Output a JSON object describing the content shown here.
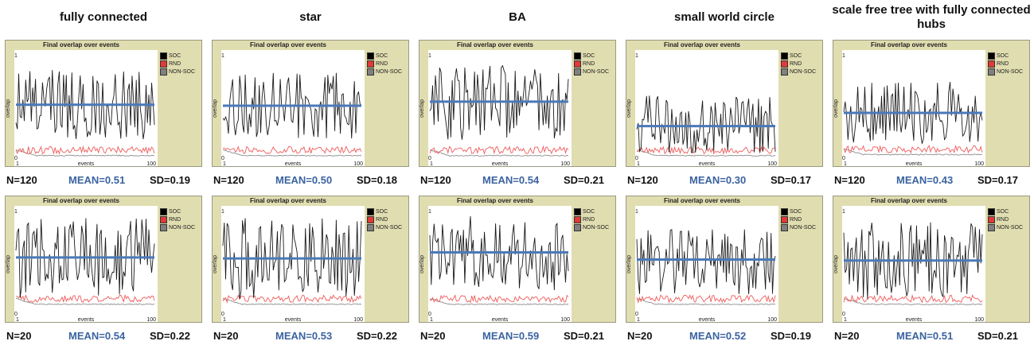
{
  "columns": [
    "fully connected",
    "star",
    "BA",
    "small world circle",
    "scale free tree with fully connected hubs"
  ],
  "panel_title": "Final overlap over events",
  "legend": [
    {
      "label": "SOC",
      "color": "#000000"
    },
    {
      "label": "RND",
      "color": "#e03a3a"
    },
    {
      "label": "NON-SOC",
      "color": "#808080"
    }
  ],
  "axis": {
    "ylabel": "overlap",
    "xlabel": "events",
    "y_top": "1",
    "y_bottom": "0",
    "x_left": "1",
    "x_right": "100"
  },
  "colors": {
    "soc": "#1a1a1a",
    "rnd": "#ef5b5b",
    "nonsoc": "#8c8c8c",
    "mean": "#4a79b8"
  },
  "rows": [
    {
      "n_label": "N=120",
      "panels": [
        {
          "mean_label": "MEAN=0.51",
          "sd_label": "SD=0.19"
        },
        {
          "mean_label": "MEAN=0.50",
          "sd_label": "SD=0.18"
        },
        {
          "mean_label": "MEAN=0.54",
          "sd_label": "SD=0.21"
        },
        {
          "mean_label": "MEAN=0.30",
          "sd_label": "SD=0.17"
        },
        {
          "mean_label": "MEAN=0.43",
          "sd_label": "SD=0.17"
        }
      ]
    },
    {
      "n_label": "N=20",
      "panels": [
        {
          "mean_label": "MEAN=0.54",
          "sd_label": "SD=0.22"
        },
        {
          "mean_label": "MEAN=0.53",
          "sd_label": "SD=0.22"
        },
        {
          "mean_label": "MEAN=0.59",
          "sd_label": "SD=0.21"
        },
        {
          "mean_label": "MEAN=0.52",
          "sd_label": "SD=0.19"
        },
        {
          "mean_label": "MEAN=0.51",
          "sd_label": "SD=0.21"
        }
      ]
    }
  ],
  "chart_data": [
    {
      "type": "line",
      "row": "N=120",
      "network": "fully connected",
      "mean": 0.51,
      "sd": 0.19,
      "x_range": [
        1,
        100
      ],
      "ylim": [
        0,
        1
      ],
      "series": [
        {
          "name": "SOC"
        },
        {
          "name": "RND",
          "approx_level": 0.05
        },
        {
          "name": "NON-SOC",
          "approx_level": 0.01
        }
      ]
    },
    {
      "type": "line",
      "row": "N=120",
      "network": "star",
      "mean": 0.5,
      "sd": 0.18,
      "x_range": [
        1,
        100
      ],
      "ylim": [
        0,
        1
      ],
      "series": [
        {
          "name": "SOC"
        },
        {
          "name": "RND",
          "approx_level": 0.05
        },
        {
          "name": "NON-SOC",
          "approx_level": 0.01
        }
      ]
    },
    {
      "type": "line",
      "row": "N=120",
      "network": "BA",
      "mean": 0.54,
      "sd": 0.21,
      "x_range": [
        1,
        100
      ],
      "ylim": [
        0,
        1
      ],
      "series": [
        {
          "name": "SOC"
        },
        {
          "name": "RND",
          "approx_level": 0.05
        },
        {
          "name": "NON-SOC",
          "approx_level": 0.01
        }
      ]
    },
    {
      "type": "line",
      "row": "N=120",
      "network": "small world circle",
      "mean": 0.3,
      "sd": 0.17,
      "x_range": [
        1,
        100
      ],
      "ylim": [
        0,
        1
      ],
      "series": [
        {
          "name": "SOC"
        },
        {
          "name": "RND",
          "approx_level": 0.05
        },
        {
          "name": "NON-SOC",
          "approx_level": 0.01
        }
      ]
    },
    {
      "type": "line",
      "row": "N=120",
      "network": "scale free tree with fully connected hubs",
      "mean": 0.43,
      "sd": 0.17,
      "x_range": [
        1,
        100
      ],
      "ylim": [
        0,
        1
      ],
      "series": [
        {
          "name": "SOC"
        },
        {
          "name": "RND",
          "approx_level": 0.06
        },
        {
          "name": "NON-SOC",
          "approx_level": 0.02
        }
      ]
    },
    {
      "type": "line",
      "row": "N=20",
      "network": "fully connected",
      "mean": 0.54,
      "sd": 0.22,
      "x_range": [
        1,
        100
      ],
      "ylim": [
        0,
        1
      ],
      "series": [
        {
          "name": "SOC"
        },
        {
          "name": "RND",
          "approx_level": 0.12
        },
        {
          "name": "NON-SOC",
          "approx_level": 0.08
        }
      ]
    },
    {
      "type": "line",
      "row": "N=20",
      "network": "star",
      "mean": 0.53,
      "sd": 0.22,
      "x_range": [
        1,
        100
      ],
      "ylim": [
        0,
        1
      ],
      "series": [
        {
          "name": "SOC"
        },
        {
          "name": "RND",
          "approx_level": 0.12
        },
        {
          "name": "NON-SOC",
          "approx_level": 0.08
        }
      ]
    },
    {
      "type": "line",
      "row": "N=20",
      "network": "BA",
      "mean": 0.59,
      "sd": 0.21,
      "x_range": [
        1,
        100
      ],
      "ylim": [
        0,
        1
      ],
      "series": [
        {
          "name": "SOC"
        },
        {
          "name": "RND",
          "approx_level": 0.12
        },
        {
          "name": "NON-SOC",
          "approx_level": 0.08
        }
      ]
    },
    {
      "type": "line",
      "row": "N=20",
      "network": "small world circle",
      "mean": 0.52,
      "sd": 0.19,
      "x_range": [
        1,
        100
      ],
      "ylim": [
        0,
        1
      ],
      "series": [
        {
          "name": "SOC"
        },
        {
          "name": "RND",
          "approx_level": 0.12
        },
        {
          "name": "NON-SOC",
          "approx_level": 0.08
        }
      ]
    },
    {
      "type": "line",
      "row": "N=20",
      "network": "scale free tree with fully connected hubs",
      "mean": 0.51,
      "sd": 0.21,
      "x_range": [
        1,
        100
      ],
      "ylim": [
        0,
        1
      ],
      "series": [
        {
          "name": "SOC"
        },
        {
          "name": "RND",
          "approx_level": 0.12
        },
        {
          "name": "NON-SOC",
          "approx_level": 0.08
        }
      ]
    }
  ]
}
